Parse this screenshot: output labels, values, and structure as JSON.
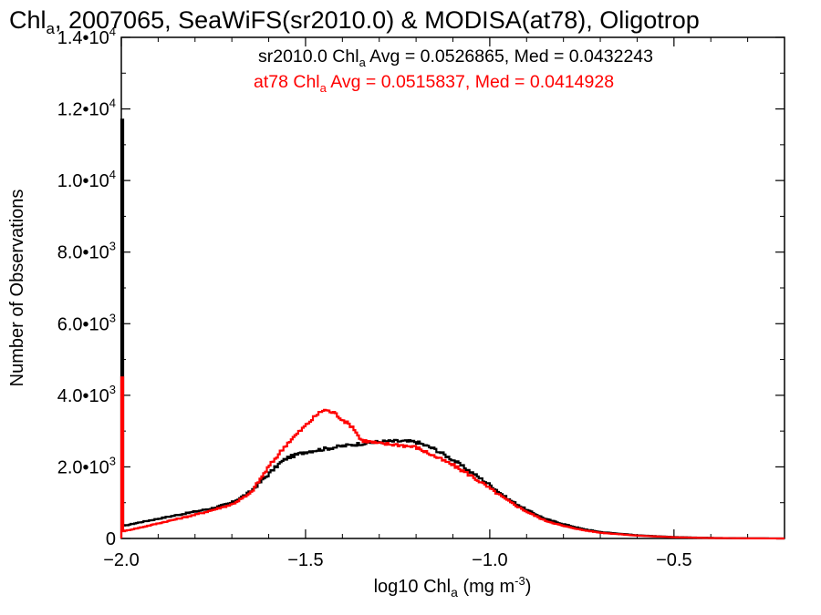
{
  "chart_data": {
    "type": "line",
    "title": {
      "prefix": "Chl",
      "sub": "a",
      "rest": ", 2007065, SeaWiFS(sr2010.0) & MODISA(at78), Oligotrop"
    },
    "xlabel": {
      "prefix": "log10 Chl",
      "sub": "a",
      "mid": " (mg m",
      "sup": "-3",
      "suffix": ")"
    },
    "ylabel": "Number of Observations",
    "xlim": [
      -2.0,
      -0.2
    ],
    "ylim": [
      0,
      14000
    ],
    "xticks": [
      {
        "value": -2.0,
        "label": "−2.0"
      },
      {
        "value": -1.5,
        "label": "−1.5"
      },
      {
        "value": -1.0,
        "label": "−1.0"
      },
      {
        "value": -0.5,
        "label": "−0.5"
      }
    ],
    "yticks": [
      {
        "value": 0,
        "mant": "0",
        "exp": ""
      },
      {
        "value": 2000,
        "mant": "2.0•10",
        "exp": "3"
      },
      {
        "value": 4000,
        "mant": "4.0•10",
        "exp": "3"
      },
      {
        "value": 6000,
        "mant": "6.0•10",
        "exp": "3"
      },
      {
        "value": 8000,
        "mant": "8.0•10",
        "exp": "3"
      },
      {
        "value": 10000,
        "mant": "1.0•10",
        "exp": "4"
      },
      {
        "value": 12000,
        "mant": "1.2•10",
        "exp": "4"
      },
      {
        "value": 14000,
        "mant": "1.4•10",
        "exp": "4"
      }
    ],
    "annotations": [
      {
        "prefix": "sr2010.0 Chl",
        "sub": "a",
        "rest": " Avg = 0.0526865, Med = 0.0432243",
        "color": "#000000"
      },
      {
        "prefix": "at78 Chl",
        "sub": "a",
        "rest": " Avg = 0.0515837, Med = 0.0414928",
        "color": "#ff0000"
      }
    ],
    "series": [
      {
        "color": "#000000",
        "spike": {
          "x": -2.0,
          "y": 11700
        },
        "x": [
          -1.995,
          -1.95,
          -1.9,
          -1.85,
          -1.8,
          -1.75,
          -1.7,
          -1.65,
          -1.6,
          -1.57,
          -1.55,
          -1.5,
          -1.45,
          -1.4,
          -1.35,
          -1.3,
          -1.25,
          -1.2,
          -1.15,
          -1.1,
          -1.05,
          -1.0,
          -0.95,
          -0.9,
          -0.85,
          -0.8,
          -0.75,
          -0.7,
          -0.6,
          -0.5,
          -0.4,
          -0.3,
          -0.2
        ],
        "y": [
          350,
          450,
          550,
          650,
          750,
          850,
          1000,
          1300,
          1800,
          2100,
          2250,
          2420,
          2500,
          2580,
          2650,
          2700,
          2720,
          2700,
          2500,
          2200,
          1850,
          1500,
          1100,
          800,
          550,
          400,
          270,
          180,
          90,
          40,
          15,
          5,
          0
        ]
      },
      {
        "color": "#ff0000",
        "spike": {
          "x": -2.0,
          "y": 4500
        },
        "x": [
          -1.995,
          -1.95,
          -1.9,
          -1.85,
          -1.8,
          -1.75,
          -1.7,
          -1.65,
          -1.6,
          -1.55,
          -1.5,
          -1.47,
          -1.45,
          -1.42,
          -1.4,
          -1.37,
          -1.35,
          -1.3,
          -1.25,
          -1.2,
          -1.15,
          -1.1,
          -1.05,
          -1.0,
          -0.95,
          -0.9,
          -0.85,
          -0.8,
          -0.75,
          -0.7,
          -0.6,
          -0.5,
          -0.4,
          -0.3,
          -0.2
        ],
        "y": [
          200,
          300,
          420,
          540,
          660,
          800,
          950,
          1250,
          2000,
          2650,
          3150,
          3450,
          3600,
          3500,
          3320,
          3100,
          2750,
          2650,
          2620,
          2550,
          2300,
          2050,
          1750,
          1400,
          1050,
          750,
          500,
          350,
          240,
          160,
          80,
          35,
          12,
          4,
          0
        ]
      }
    ]
  }
}
